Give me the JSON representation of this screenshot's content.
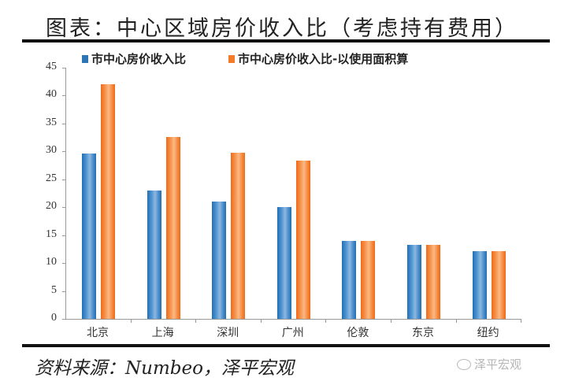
{
  "title": "图表：中心区域房价收入比（考虑持有费用）",
  "legend": [
    {
      "label": "市中心房价收入比",
      "color": "#2e75b6"
    },
    {
      "label": "市中心房价收入比-以使用面积算",
      "color": "#f47b2a"
    }
  ],
  "y_ticks": [
    "45",
    "40",
    "35",
    "30",
    "25",
    "20",
    "15",
    "10",
    "5",
    "0"
  ],
  "x_labels": [
    "北京",
    "上海",
    "深圳",
    "广州",
    "伦敦",
    "东京",
    "纽约"
  ],
  "source": "资料来源：Numbeo，泽平宏观",
  "watermark": "泽平宏观",
  "chart_data": {
    "type": "bar",
    "title": "图表：中心区域房价收入比（考虑持有费用）",
    "xlabel": "",
    "ylabel": "",
    "ylim": [
      0,
      45
    ],
    "yticks": [
      0,
      5,
      10,
      15,
      20,
      25,
      30,
      35,
      40,
      45
    ],
    "grid": false,
    "legend_position": "top",
    "categories": [
      "北京",
      "上海",
      "深圳",
      "广州",
      "伦敦",
      "东京",
      "纽约"
    ],
    "series": [
      {
        "name": "市中心房价收入比",
        "color": "#2e75b6",
        "values": [
          29.6,
          23.0,
          21.0,
          20.0,
          14.0,
          13.3,
          12.2
        ]
      },
      {
        "name": "市中心房价收入比-以使用面积算",
        "color": "#f47b2a",
        "values": [
          42.0,
          32.6,
          29.8,
          28.3,
          14.0,
          13.3,
          12.2
        ]
      }
    ],
    "source": "资料来源：Numbeo，泽平宏观"
  }
}
